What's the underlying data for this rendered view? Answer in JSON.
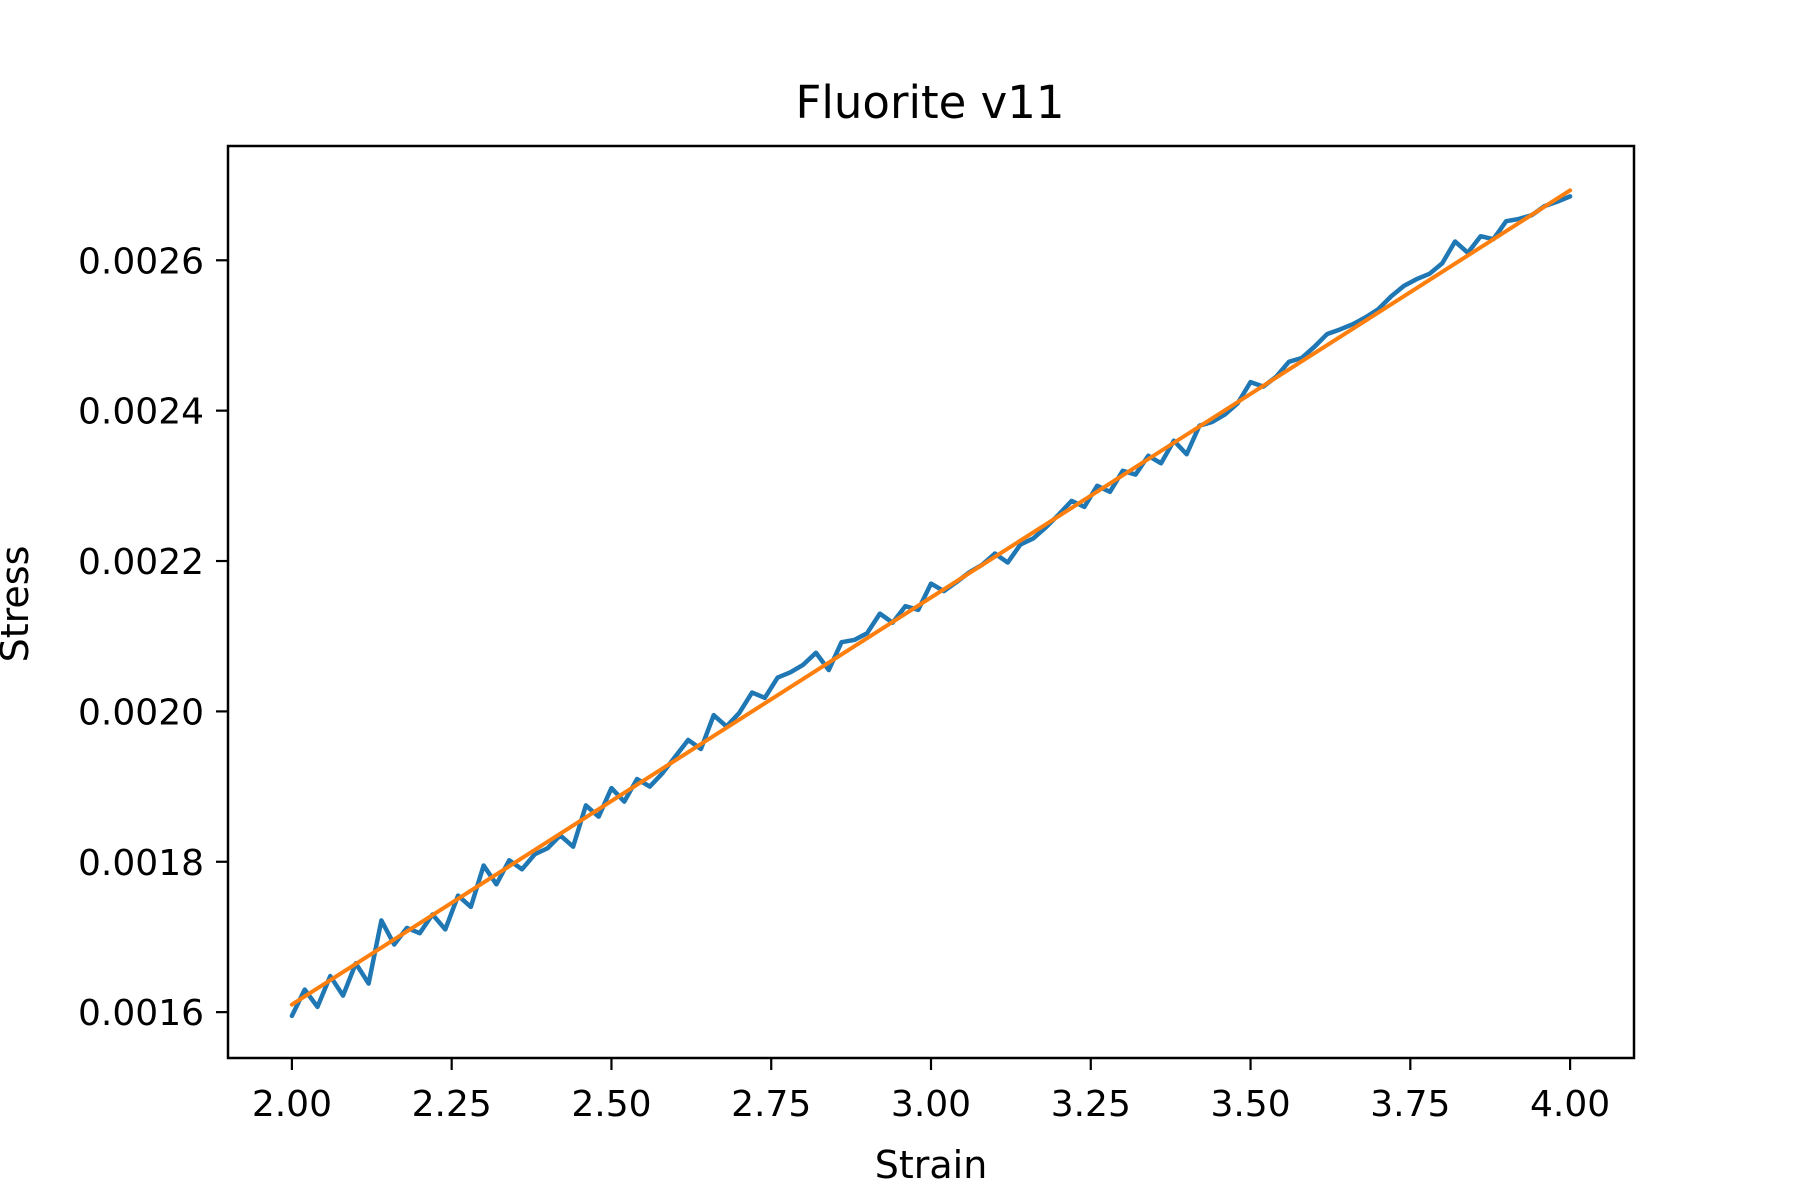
{
  "chart_data": {
    "type": "line",
    "title": "Fluorite v11",
    "xlabel": "Strain",
    "ylabel": "Stress",
    "xlim": [
      1.9,
      4.1
    ],
    "ylim": [
      0.001539,
      0.002752
    ],
    "xticks": [
      "2.00",
      "2.25",
      "2.50",
      "2.75",
      "3.00",
      "3.25",
      "3.50",
      "3.75",
      "4.00"
    ],
    "yticks": [
      "0.0016",
      "0.0018",
      "0.0020",
      "0.0022",
      "0.0024",
      "0.0026"
    ],
    "grid": false,
    "legend": "none",
    "series": [
      {
        "kind": "measured",
        "color": "#1f77b4",
        "x": [
          2.0,
          2.02,
          2.04,
          2.06,
          2.08,
          2.1,
          2.12,
          2.14,
          2.16,
          2.18,
          2.2,
          2.22,
          2.24,
          2.26,
          2.28,
          2.3,
          2.32,
          2.34,
          2.36,
          2.38,
          2.4,
          2.42,
          2.44,
          2.46,
          2.48,
          2.5,
          2.52,
          2.54,
          2.56,
          2.58,
          2.6,
          2.62,
          2.64,
          2.66,
          2.68,
          2.7,
          2.72,
          2.74,
          2.76,
          2.78,
          2.8,
          2.82,
          2.84,
          2.86,
          2.88,
          2.9,
          2.92,
          2.94,
          2.96,
          2.98,
          3.0,
          3.02,
          3.04,
          3.06,
          3.08,
          3.1,
          3.12,
          3.14,
          3.16,
          3.18,
          3.2,
          3.22,
          3.24,
          3.26,
          3.28,
          3.3,
          3.32,
          3.34,
          3.36,
          3.38,
          3.4,
          3.42,
          3.44,
          3.46,
          3.48,
          3.5,
          3.52,
          3.54,
          3.56,
          3.58,
          3.6,
          3.62,
          3.64,
          3.66,
          3.68,
          3.7,
          3.72,
          3.74,
          3.76,
          3.78,
          3.8,
          3.82,
          3.84,
          3.86,
          3.88,
          3.9,
          3.92,
          3.94,
          3.96,
          3.98,
          4.0
        ],
        "y": [
          0.001595,
          0.00163,
          0.001607,
          0.001648,
          0.001622,
          0.001665,
          0.001638,
          0.001722,
          0.00169,
          0.001712,
          0.001705,
          0.00173,
          0.00171,
          0.001755,
          0.00174,
          0.001795,
          0.00177,
          0.001802,
          0.00179,
          0.00181,
          0.001818,
          0.001835,
          0.00182,
          0.001875,
          0.00186,
          0.001898,
          0.00188,
          0.00191,
          0.0019,
          0.001918,
          0.00194,
          0.001962,
          0.00195,
          0.001995,
          0.00198,
          0.001998,
          0.002025,
          0.002018,
          0.002045,
          0.002052,
          0.002062,
          0.002078,
          0.002055,
          0.002092,
          0.002095,
          0.002104,
          0.00213,
          0.002118,
          0.00214,
          0.002135,
          0.00217,
          0.00216,
          0.002172,
          0.002185,
          0.002195,
          0.00221,
          0.002198,
          0.002222,
          0.00223,
          0.002245,
          0.002262,
          0.00228,
          0.002272,
          0.0023,
          0.002292,
          0.00232,
          0.002315,
          0.00234,
          0.00233,
          0.00236,
          0.002342,
          0.00238,
          0.002385,
          0.002395,
          0.00241,
          0.002438,
          0.002432,
          0.002445,
          0.002465,
          0.00247,
          0.002485,
          0.002502,
          0.002508,
          0.002515,
          0.002524,
          0.002535,
          0.002552,
          0.002566,
          0.002575,
          0.002582,
          0.002596,
          0.002625,
          0.00261,
          0.002632,
          0.002628,
          0.002652,
          0.002655,
          0.00266,
          0.002672,
          0.002678,
          0.002685
        ]
      },
      {
        "kind": "fit",
        "color": "#ff7f0e",
        "x": [
          2.0,
          4.0
        ],
        "y": [
          0.00161,
          0.002693
        ]
      }
    ]
  }
}
